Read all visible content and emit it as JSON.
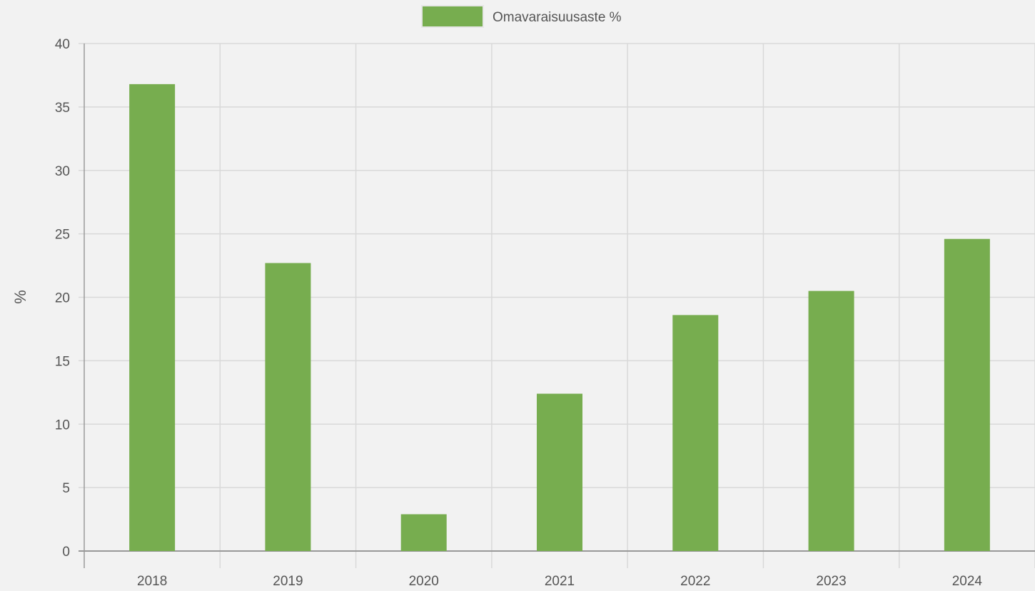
{
  "chart_data": {
    "type": "bar",
    "categories": [
      "2018",
      "2019",
      "2020",
      "2021",
      "2022",
      "2023",
      "2024"
    ],
    "series": [
      {
        "name": "Omavaraisuusaste %",
        "values": [
          36.8,
          22.7,
          2.9,
          12.4,
          18.6,
          20.5,
          24.6
        ],
        "color": "#77ad4f"
      }
    ],
    "xlabel": "",
    "ylabel": "%",
    "ylim": [
      0,
      40
    ],
    "yticks": [
      "0",
      "5",
      "10",
      "15",
      "20",
      "25",
      "30",
      "35",
      "40"
    ],
    "grid": true,
    "legend": "top-center",
    "colors": {
      "background": "#f2f2f2",
      "grid": "#d9d9d9",
      "axis": "#999999",
      "text": "#555555"
    }
  }
}
